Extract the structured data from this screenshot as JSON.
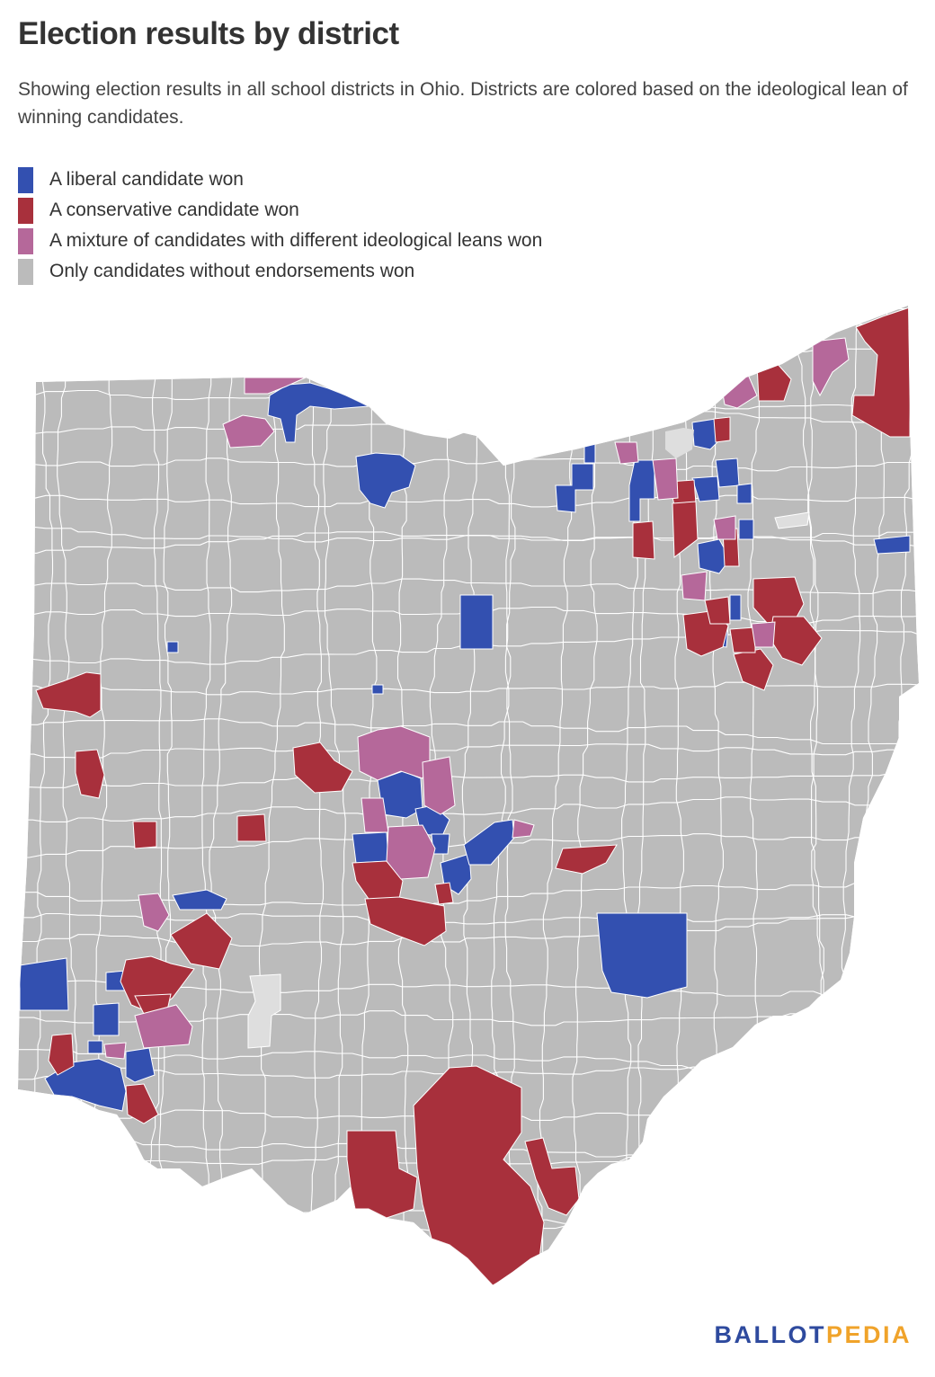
{
  "title": "Election results by district",
  "subtitle": "Showing election results in all school districts in Ohio. Districts are colored based on the ideological lean of winning candidates.",
  "legend": [
    {
      "label": "A liberal candidate won",
      "color": "#3350b0"
    },
    {
      "label": "A conservative candidate won",
      "color": "#a8303c"
    },
    {
      "label": "A mixture of candidates with different ideological leans won",
      "color": "#b5689a"
    },
    {
      "label": "Only candidates without endorsements won",
      "color": "#bbbbbb"
    }
  ],
  "colors": {
    "liberal": "#3350b0",
    "conservative": "#a8303c",
    "mixture": "#b5689a",
    "no_endorsement": "#bbbbbb",
    "no_data": "#dedede",
    "border": "#ffffff"
  },
  "credit": {
    "part1": "BALLOT",
    "part2": "PEDIA"
  }
}
